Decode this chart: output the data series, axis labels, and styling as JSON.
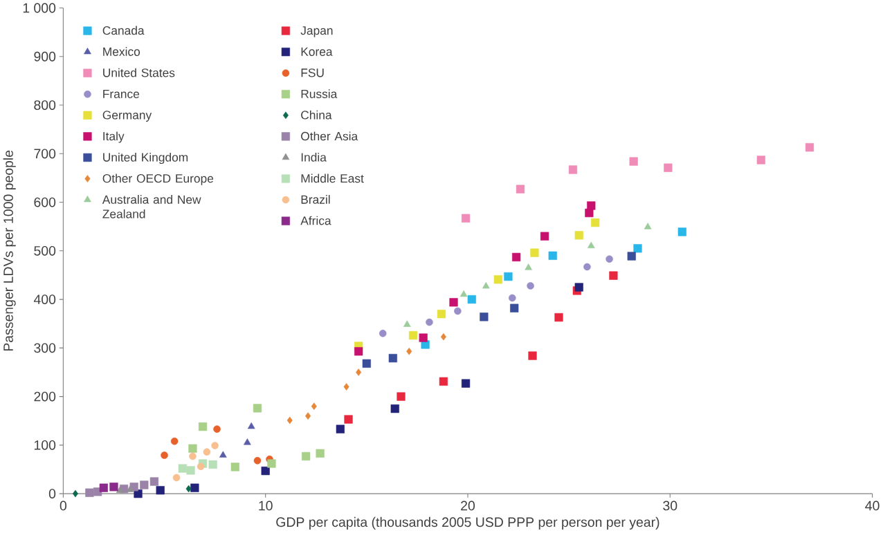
{
  "chart_data": {
    "type": "scatter",
    "xlabel": "GDP per capita (thousands 2005 USD PPP per person per year)",
    "ylabel": "Passenger LDVs per 1000 people",
    "xlim": [
      0,
      40
    ],
    "xticks": [
      0,
      10,
      20,
      30,
      40
    ],
    "ylim": [
      0,
      1000
    ],
    "yticks": [
      0,
      100,
      200,
      300,
      400,
      500,
      600,
      700,
      800,
      900,
      {
        "value": 1000,
        "label": "1 000"
      }
    ],
    "grid": false,
    "legend": "top left",
    "series": [
      {
        "name": "Canada",
        "color": "#29b6e8",
        "marker": "square",
        "x": [
          17.9,
          20.2,
          22.0,
          24.2,
          28.4,
          30.6
        ],
        "values": [
          307,
          400,
          447,
          490,
          505,
          539
        ]
      },
      {
        "name": "Mexico",
        "color": "#5a5ea8",
        "marker": "triangle",
        "x": [
          7.9,
          9.1,
          9.3
        ],
        "values": [
          79,
          105,
          138
        ]
      },
      {
        "name": "United States",
        "color": "#f08cb8",
        "marker": "square",
        "x": [
          19.9,
          22.6,
          25.2,
          28.2,
          29.9,
          34.5,
          36.9
        ],
        "values": [
          567,
          627,
          667,
          684,
          671,
          687,
          713
        ]
      },
      {
        "name": "France",
        "color": "#9a8ec8",
        "marker": "circle",
        "x": [
          15.8,
          18.1,
          19.5,
          22.2,
          23.1,
          25.9,
          27.0
        ],
        "values": [
          330,
          353,
          376,
          403,
          428,
          467,
          483
        ]
      },
      {
        "name": "Germany",
        "color": "#e6e03a",
        "marker": "square",
        "x": [
          14.6,
          17.3,
          18.7,
          21.5,
          23.3,
          25.5,
          26.3
        ],
        "values": [
          304,
          326,
          370,
          441,
          496,
          532,
          558
        ]
      },
      {
        "name": "Italy",
        "color": "#c8106e",
        "marker": "square",
        "x": [
          14.6,
          17.8,
          19.3,
          22.4,
          23.8,
          26.0,
          26.1
        ],
        "values": [
          293,
          321,
          394,
          487,
          530,
          578,
          593
        ]
      },
      {
        "name": "United Kingdom",
        "color": "#3a4e9a",
        "marker": "square",
        "x": [
          15.0,
          16.3,
          20.8,
          22.3,
          28.1
        ],
        "values": [
          268,
          279,
          364,
          382,
          489
        ]
      },
      {
        "name": "Other OECD Europe",
        "color": "#e6883a",
        "marker": "diamond",
        "x": [
          11.2,
          12.1,
          12.4,
          14.0,
          14.6,
          17.1,
          18.8
        ],
        "values": [
          151,
          160,
          180,
          220,
          250,
          293,
          323
        ]
      },
      {
        "name": "Australia and New Zealand",
        "color": "#9ccc9c",
        "marker": "triangle",
        "x": [
          17.0,
          19.8,
          20.9,
          23.0,
          26.1,
          28.9
        ],
        "values": [
          348,
          410,
          427,
          465,
          510,
          549
        ]
      },
      {
        "name": "Japan",
        "color": "#e8283e",
        "marker": "square",
        "x": [
          14.1,
          16.7,
          18.8,
          23.2,
          24.5,
          25.4,
          27.2
        ],
        "values": [
          153,
          200,
          231,
          284,
          363,
          418,
          449
        ]
      },
      {
        "name": "Korea",
        "color": "#23237a",
        "marker": "square",
        "x": [
          3.7,
          4.8,
          6.5,
          10.0,
          13.7,
          16.4,
          19.9,
          25.5
        ],
        "values": [
          0,
          7,
          12,
          47,
          133,
          175,
          227,
          425
        ]
      },
      {
        "name": "FSU",
        "color": "#e8602a",
        "marker": "circle",
        "x": [
          5.0,
          5.5,
          7.6,
          9.6,
          10.2
        ],
        "values": [
          79,
          108,
          133,
          68,
          71
        ]
      },
      {
        "name": "Russia",
        "color": "#a8d088",
        "marker": "square",
        "x": [
          6.4,
          6.9,
          8.5,
          9.6,
          10.3,
          12.0,
          12.7
        ],
        "values": [
          93,
          138,
          55,
          176,
          62,
          77,
          83
        ]
      },
      {
        "name": "China",
        "color": "#0c6a50",
        "marker": "diamond",
        "x": [
          0.6,
          6.2
        ],
        "values": [
          0,
          10
        ]
      },
      {
        "name": "Other Asia",
        "color": "#9a82a8",
        "marker": "square",
        "x": [
          1.3,
          1.7,
          3.0,
          3.5,
          4.0,
          4.5
        ],
        "values": [
          2,
          4,
          10,
          14,
          18,
          25
        ]
      },
      {
        "name": "India",
        "color": "#909090",
        "marker": "triangle",
        "x": [
          2.8,
          3.3
        ],
        "values": [
          6,
          8
        ]
      },
      {
        "name": "Middle East",
        "color": "#b8e0b8",
        "marker": "square",
        "x": [
          5.9,
          6.3,
          6.9,
          7.4
        ],
        "values": [
          52,
          48,
          62,
          60
        ]
      },
      {
        "name": "Brazil",
        "color": "#f8c090",
        "marker": "circle",
        "x": [
          5.6,
          6.4,
          6.8,
          7.1,
          7.5
        ],
        "values": [
          33,
          77,
          56,
          86,
          99
        ]
      },
      {
        "name": "Africa",
        "color": "#8a2a8a",
        "marker": "square",
        "x": [
          2.0,
          2.5
        ],
        "values": [
          12,
          14
        ]
      }
    ]
  }
}
